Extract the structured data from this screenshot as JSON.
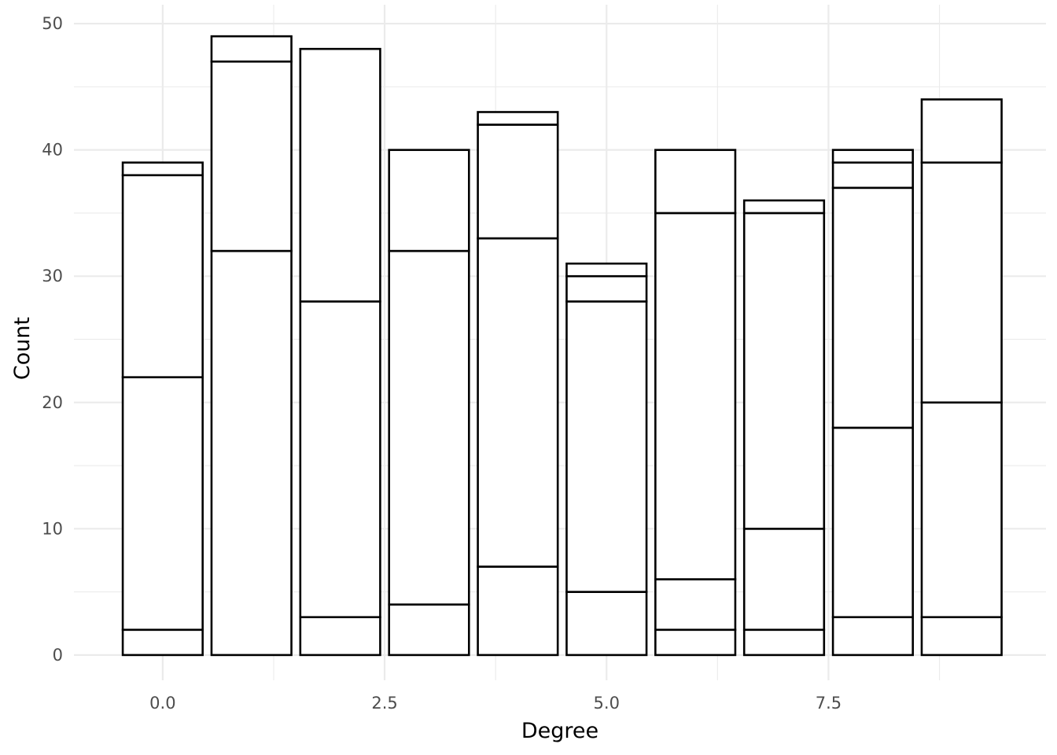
{
  "chart_data": {
    "type": "bar",
    "stacked": true,
    "xlabel": "Degree",
    "ylabel": "Count",
    "xlim": [
      -1.0,
      9.95
    ],
    "ylim": [
      -2.0,
      51.5
    ],
    "x_ticks": [
      0.0,
      2.5,
      5.0,
      7.5
    ],
    "x_tick_labels": [
      "0.0",
      "2.5",
      "5.0",
      "7.5"
    ],
    "y_ticks": [
      0,
      10,
      20,
      30,
      40,
      50
    ],
    "y_tick_labels": [
      "0",
      "10",
      "20",
      "30",
      "40",
      "50"
    ],
    "grid": true,
    "bar_width": 0.9,
    "bar_fill": "#ffffff",
    "bar_outline": "#000000",
    "grid_color": "#ebebeb",
    "x": [
      0,
      1,
      2,
      3,
      4,
      5,
      6,
      7,
      8,
      9
    ],
    "stack_boundaries": [
      [
        2,
        22,
        38,
        39
      ],
      [
        32,
        47,
        49
      ],
      [
        3,
        28,
        48
      ],
      [
        4,
        32,
        40
      ],
      [
        7,
        33,
        42,
        43
      ],
      [
        5,
        28,
        30,
        31
      ],
      [
        2,
        6,
        35,
        40
      ],
      [
        2,
        10,
        35,
        36
      ],
      [
        3,
        18,
        37,
        39,
        40
      ],
      [
        3,
        20,
        39,
        44
      ]
    ],
    "totals": [
      39,
      49,
      48,
      40,
      43,
      31,
      40,
      36,
      40,
      44
    ]
  }
}
